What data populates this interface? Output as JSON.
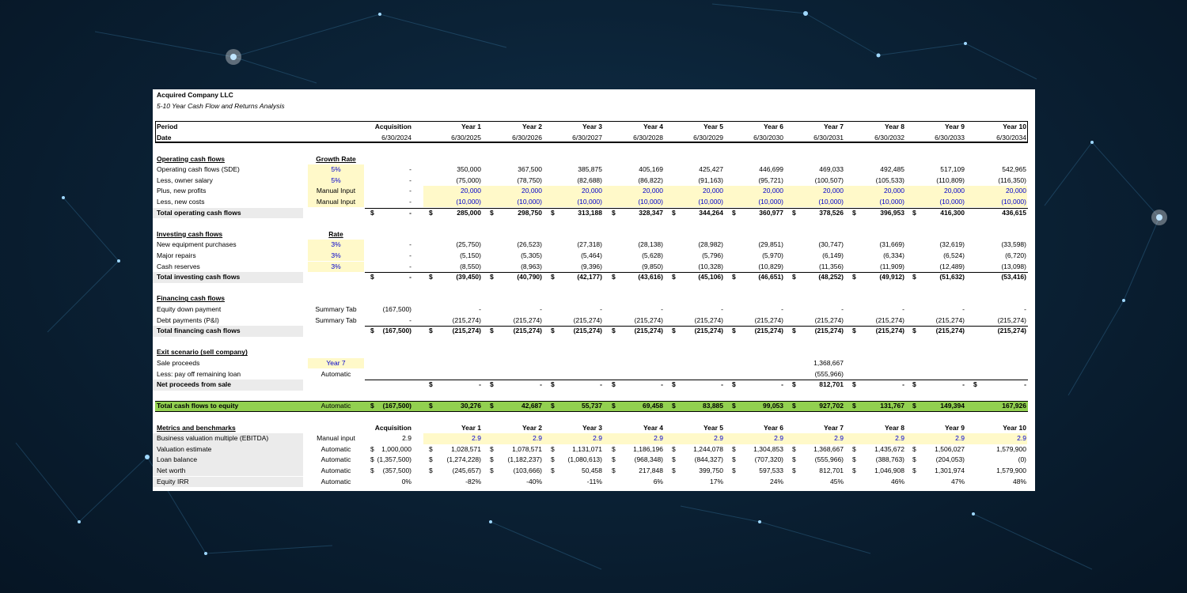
{
  "company": "Acquired Company LLC",
  "subtitle": "5-10 Year Cash Flow and Returns Analysis",
  "header": {
    "period_label": "Period",
    "date_label": "Date",
    "periods": [
      "Acquisition",
      "Year 1",
      "Year 2",
      "Year 3",
      "Year 4",
      "Year 5",
      "Year 6",
      "Year 7",
      "Year 8",
      "Year 9",
      "Year 10"
    ],
    "dates": [
      "6/30/2024",
      "6/30/2025",
      "6/30/2026",
      "6/30/2027",
      "6/30/2028",
      "6/30/2029",
      "6/30/2030",
      "6/30/2031",
      "6/30/2032",
      "6/30/2033",
      "6/30/2034"
    ]
  },
  "operating": {
    "title": "Operating cash flows",
    "rate_header": "Growth Rate",
    "rows": [
      {
        "label": "Operating cash flows (SDE)",
        "rate": "5%",
        "values": [
          "-",
          "350,000",
          "367,500",
          "385,875",
          "405,169",
          "425,427",
          "446,699",
          "469,033",
          "492,485",
          "517,109",
          "542,965"
        ]
      },
      {
        "label": "Less, owner salary",
        "rate": "5%",
        "values": [
          "-",
          "(75,000)",
          "(78,750)",
          "(82,688)",
          "(86,822)",
          "(91,163)",
          "(95,721)",
          "(100,507)",
          "(105,533)",
          "(110,809)",
          "(116,350)"
        ]
      },
      {
        "label": "Plus, new profits",
        "rate": "Manual Input",
        "values": [
          "-",
          "20,000",
          "20,000",
          "20,000",
          "20,000",
          "20,000",
          "20,000",
          "20,000",
          "20,000",
          "20,000",
          "20,000"
        ]
      },
      {
        "label": "Less, new costs",
        "rate": "Manual Input",
        "values": [
          "-",
          "(10,000)",
          "(10,000)",
          "(10,000)",
          "(10,000)",
          "(10,000)",
          "(10,000)",
          "(10,000)",
          "(10,000)",
          "(10,000)",
          "(10,000)"
        ]
      }
    ],
    "total": {
      "label": "Total operating cash flows",
      "values": [
        "-",
        "285,000",
        "298,750",
        "313,188",
        "328,347",
        "344,264",
        "360,977",
        "378,526",
        "396,953",
        "416,300",
        "436,615"
      ]
    }
  },
  "investing": {
    "title": "Investing cash flows",
    "rate_header": "Rate",
    "rows": [
      {
        "label": "New equipment purchases",
        "rate": "3%",
        "values": [
          "-",
          "(25,750)",
          "(26,523)",
          "(27,318)",
          "(28,138)",
          "(28,982)",
          "(29,851)",
          "(30,747)",
          "(31,669)",
          "(32,619)",
          "(33,598)"
        ]
      },
      {
        "label": "Major repairs",
        "rate": "3%",
        "values": [
          "-",
          "(5,150)",
          "(5,305)",
          "(5,464)",
          "(5,628)",
          "(5,796)",
          "(5,970)",
          "(6,149)",
          "(6,334)",
          "(6,524)",
          "(6,720)"
        ]
      },
      {
        "label": "Cash reserves",
        "rate": "3%",
        "values": [
          "-",
          "(8,550)",
          "(8,963)",
          "(9,396)",
          "(9,850)",
          "(10,328)",
          "(10,829)",
          "(11,356)",
          "(11,909)",
          "(12,489)",
          "(13,098)"
        ]
      }
    ],
    "total": {
      "label": "Total investing cash flows",
      "values": [
        "-",
        "(39,450)",
        "(40,790)",
        "(42,177)",
        "(43,616)",
        "(45,106)",
        "(46,651)",
        "(48,252)",
        "(49,912)",
        "(51,632)",
        "(53,416)"
      ]
    }
  },
  "financing": {
    "title": "Financing cash flows",
    "rows": [
      {
        "label": "Equity down payment",
        "rate": "Summary Tab",
        "values": [
          "(167,500)",
          "-",
          "-",
          "-",
          "-",
          "-",
          "-",
          "-",
          "-",
          "-",
          "-"
        ]
      },
      {
        "label": "Debt payments (P&I)",
        "rate": "Summary Tab",
        "values": [
          "-",
          "(215,274)",
          "(215,274)",
          "(215,274)",
          "(215,274)",
          "(215,274)",
          "(215,274)",
          "(215,274)",
          "(215,274)",
          "(215,274)",
          "(215,274)"
        ]
      }
    ],
    "total": {
      "label": "Total financing cash flows",
      "values": [
        "(167,500)",
        "(215,274)",
        "(215,274)",
        "(215,274)",
        "(215,274)",
        "(215,274)",
        "(215,274)",
        "(215,274)",
        "(215,274)",
        "(215,274)",
        "(215,274)"
      ]
    }
  },
  "exit": {
    "title": "Exit scenario (sell company)",
    "rows": [
      {
        "label": "Sale proceeds",
        "rate": "Year 7",
        "values": [
          "",
          "",
          "",
          "",
          "",
          "",
          "",
          "1,368,667",
          "",
          "",
          ""
        ]
      },
      {
        "label": "Less: pay off remaining loan",
        "rate": "Automatic",
        "values": [
          "",
          "",
          "",
          "",
          "",
          "",
          "",
          "(555,966)",
          "",
          "",
          ""
        ]
      }
    ],
    "total": {
      "label": "Net proceeds from sale",
      "values": [
        "",
        "-",
        "-",
        "-",
        "-",
        "-",
        "-",
        "812,701",
        "-",
        "-",
        "-"
      ]
    }
  },
  "equity_total": {
    "label": "Total cash flows to equity",
    "rate": "Automatic",
    "values": [
      "(167,500)",
      "30,276",
      "42,687",
      "55,737",
      "69,458",
      "83,885",
      "99,053",
      "927,702",
      "131,767",
      "149,394",
      "167,926"
    ]
  },
  "metrics": {
    "title": "Metrics and benchmarks",
    "periods": [
      "Acquisition",
      "Year 1",
      "Year 2",
      "Year 3",
      "Year 4",
      "Year 5",
      "Year 6",
      "Year 7",
      "Year 8",
      "Year 9",
      "Year 10"
    ],
    "rows": [
      {
        "label": "Business valuation multiple (EBITDA)",
        "rate": "Manual input",
        "values": [
          "2.9",
          "2.9",
          "2.9",
          "2.9",
          "2.9",
          "2.9",
          "2.9",
          "2.9",
          "2.9",
          "2.9",
          "2.9"
        ]
      },
      {
        "label": "Valuation estimate",
        "rate": "Automatic",
        "values": [
          "1,000,000",
          "1,028,571",
          "1,078,571",
          "1,131,071",
          "1,186,196",
          "1,244,078",
          "1,304,853",
          "1,368,667",
          "1,435,672",
          "1,506,027",
          "1,579,900"
        ]
      },
      {
        "label": "Loan balance",
        "rate": "Automatic",
        "values": [
          "(1,357,500)",
          "(1,274,228)",
          "(1,182,237)",
          "(1,080,613)",
          "(968,348)",
          "(844,327)",
          "(707,320)",
          "(555,966)",
          "(388,763)",
          "(204,053)",
          "(0)"
        ]
      },
      {
        "label": "Net worth",
        "rate": "Automatic",
        "values": [
          "(357,500)",
          "(245,657)",
          "(103,666)",
          "50,458",
          "217,848",
          "399,750",
          "597,533",
          "812,701",
          "1,046,908",
          "1,301,974",
          "1,579,900"
        ]
      },
      {
        "label": "Equity IRR",
        "rate": "Automatic",
        "values": [
          "0%",
          "-82%",
          "-40%",
          "-11%",
          "6%",
          "17%",
          "24%",
          "45%",
          "46%",
          "47%",
          "48%"
        ]
      }
    ]
  },
  "currency_symbol": "$",
  "colors": {
    "highlight": "#fff9c9",
    "green": "#92d050",
    "grey": "#ebebeb",
    "input_blue": "#0000cc"
  }
}
